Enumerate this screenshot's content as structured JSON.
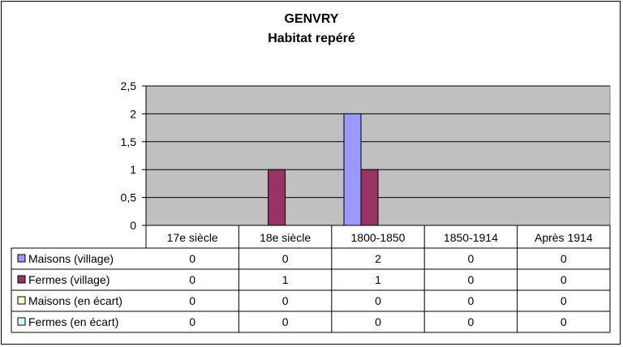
{
  "chart_data": {
    "type": "bar",
    "title": "GENVRY",
    "subtitle": "Habitat repéré",
    "categories": [
      "17e siècle",
      "18e siècle",
      "1800-1850",
      "1850-1914",
      "Après 1914"
    ],
    "ylim": [
      0,
      2.5
    ],
    "yticks": [
      "0",
      "0,5",
      "1",
      "1,5",
      "2",
      "2,5"
    ],
    "grid": true,
    "legend": "table-left",
    "plot_background": "#c0c0c0",
    "series": [
      {
        "name": "Maisons (village)",
        "color": "#9999ff",
        "values": [
          0,
          0,
          2,
          0,
          0
        ],
        "labels": [
          "0",
          "0",
          "2",
          "0",
          "0"
        ]
      },
      {
        "name": "Fermes (village)",
        "color": "#993366",
        "values": [
          0,
          1,
          1,
          0,
          0
        ],
        "labels": [
          "0",
          "1",
          "1",
          "0",
          "0"
        ]
      },
      {
        "name": "Maisons (en écart)",
        "color": "#ffffcc",
        "values": [
          0,
          0,
          0,
          0,
          0
        ],
        "labels": [
          "0",
          "0",
          "0",
          "0",
          "0"
        ]
      },
      {
        "name": "Fermes (en écart)",
        "color": "#ccffff",
        "values": [
          0,
          0,
          0,
          0,
          0
        ],
        "labels": [
          "0",
          "0",
          "0",
          "0",
          "0"
        ]
      }
    ]
  }
}
